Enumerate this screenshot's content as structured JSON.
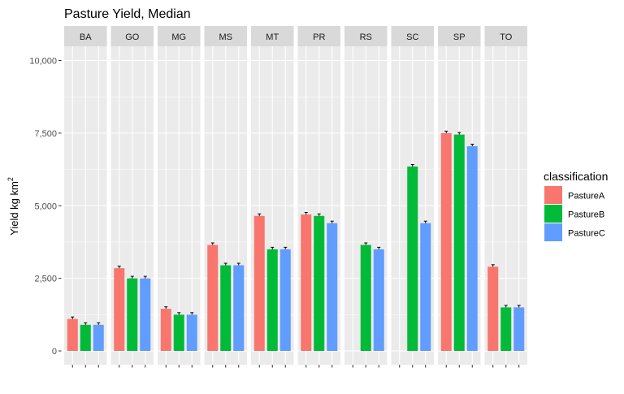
{
  "chart_data": {
    "type": "bar",
    "title": "Pasture Yield, Median",
    "ylabel": "Yield kg km",
    "ylabel_superscript": "2",
    "ylim": [
      0,
      11000
    ],
    "yticks": [
      0,
      2500,
      5000,
      7500,
      10000
    ],
    "ytick_labels": [
      "0",
      "2,500",
      "5,000",
      "7,500",
      "10,000"
    ],
    "facets": [
      "BA",
      "GO",
      "MG",
      "MS",
      "MT",
      "PR",
      "RS",
      "SC",
      "SP",
      "TO"
    ],
    "legend": {
      "title": "classification",
      "position": "right",
      "entries": [
        "PastureA",
        "PastureB",
        "PastureC"
      ]
    },
    "colors": {
      "PastureA": "#F8766D",
      "PastureB": "#00BA38",
      "PastureC": "#619CFF",
      "panel_bg": "#EBEBEB",
      "strip_bg": "#D9D9D9",
      "grid": "#FFFFFF"
    },
    "grid": true,
    "series": [
      {
        "name": "PastureA",
        "values": [
          1100,
          2850,
          1450,
          3650,
          4650,
          4700,
          null,
          null,
          7500,
          2900
        ]
      },
      {
        "name": "PastureB",
        "values": [
          900,
          2500,
          1250,
          2950,
          3500,
          4650,
          3650,
          6350,
          7450,
          1500
        ]
      },
      {
        "name": "PastureC",
        "values": [
          900,
          2500,
          1250,
          2950,
          3500,
          4400,
          3500,
          4400,
          7050,
          1500
        ]
      }
    ]
  }
}
